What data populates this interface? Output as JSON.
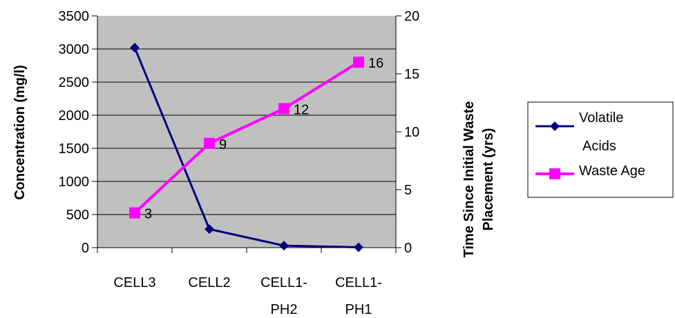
{
  "chart_data": {
    "type": "line",
    "categories": [
      "CELL3",
      "CELL2",
      "CELL1-PH2",
      "CELL1-PH1"
    ],
    "category_lines": [
      [
        "CELL3"
      ],
      [
        "CELL2"
      ],
      [
        "CELL1-",
        "PH2"
      ],
      [
        "CELL1-",
        "PH1"
      ]
    ],
    "ylabel": "Concentration (mg/l)",
    "y2label_lines": [
      "Time Since Initial Waste",
      "Placement (yrs)"
    ],
    "ylim": [
      0,
      3500
    ],
    "yticks": [
      "0",
      "500",
      "1000",
      "1500",
      "2000",
      "2500",
      "3000",
      "3500"
    ],
    "y2lim": [
      0,
      20
    ],
    "y2ticks": [
      "0",
      "5",
      "10",
      "15",
      "20"
    ],
    "grid": true,
    "plot_background": "#c0c0c0",
    "legend_position": "right",
    "series": [
      {
        "legend_lines": [
          "Volatile",
          "Acids"
        ],
        "axis": "left",
        "values": [
          3020,
          280,
          30,
          5
        ],
        "color": "#000080",
        "marker": "diamond"
      },
      {
        "legend_lines": [
          "Waste Age"
        ],
        "axis": "right",
        "values": [
          3,
          9,
          12,
          16
        ],
        "data_labels": [
          "3",
          "9",
          "12",
          "16"
        ],
        "color": "#ff00ff",
        "marker": "square"
      }
    ]
  }
}
